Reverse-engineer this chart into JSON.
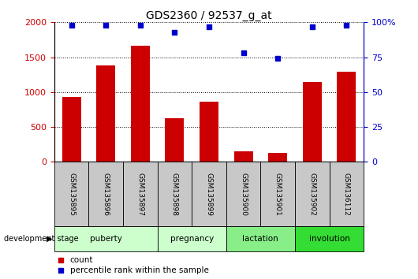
{
  "title": "GDS2360 / 92537_g_at",
  "samples": [
    "GSM135895",
    "GSM135896",
    "GSM135897",
    "GSM135898",
    "GSM135899",
    "GSM135900",
    "GSM135901",
    "GSM135902",
    "GSM136112"
  ],
  "counts": [
    930,
    1380,
    1660,
    630,
    860,
    145,
    130,
    1140,
    1290
  ],
  "percentiles": [
    98,
    98,
    98,
    93,
    97,
    78,
    74,
    97,
    98
  ],
  "bar_color": "#cc0000",
  "dot_color": "#0000cc",
  "left_axis_color": "#cc0000",
  "right_axis_color": "#0000cc",
  "ylim_left": [
    0,
    2000
  ],
  "ylim_right": [
    0,
    100
  ],
  "yticks_left": [
    0,
    500,
    1000,
    1500,
    2000
  ],
  "yticks_right": [
    0,
    25,
    50,
    75,
    100
  ],
  "stage_defs": [
    {
      "label": "puberty",
      "start": 0,
      "end": 3,
      "color": "#ccffcc"
    },
    {
      "label": "pregnancy",
      "start": 3,
      "end": 5,
      "color": "#ccffcc"
    },
    {
      "label": "lactation",
      "start": 5,
      "end": 7,
      "color": "#88ee88"
    },
    {
      "label": "involution",
      "start": 7,
      "end": 9,
      "color": "#33dd33"
    }
  ],
  "sample_cell_color": "#c8c8c8",
  "legend_count_label": "count",
  "legend_percentile_label": "percentile rank within the sample",
  "dev_stage_label": "development stage"
}
